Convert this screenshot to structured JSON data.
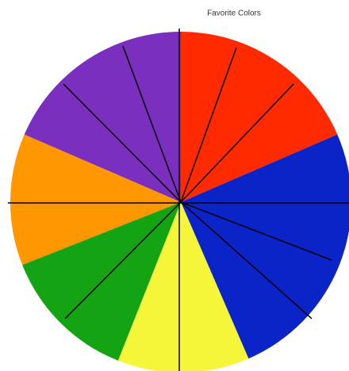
{
  "chart_data": {
    "type": "pie",
    "title": "Favorite Colors",
    "values": [
      18.5,
      25,
      12.5,
      13,
      12.5,
      18.5
    ],
    "colors": [
      "#ff2a00",
      "#0a24c8",
      "#f5f53a",
      "#13a313",
      "#ff9800",
      "#7a2fbf"
    ]
  }
}
